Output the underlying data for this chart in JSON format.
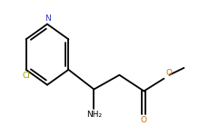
{
  "bg_color": "#ffffff",
  "bond_color": "#000000",
  "text_color": "#000000",
  "n_color": "#3333bb",
  "cl_color": "#999900",
  "o_color": "#cc6600",
  "line_width": 1.3,
  "font_size": 6.5,
  "fig_w": 2.19,
  "fig_h": 1.39,
  "xlim": [
    0,
    219
  ],
  "ylim": [
    0,
    139
  ]
}
